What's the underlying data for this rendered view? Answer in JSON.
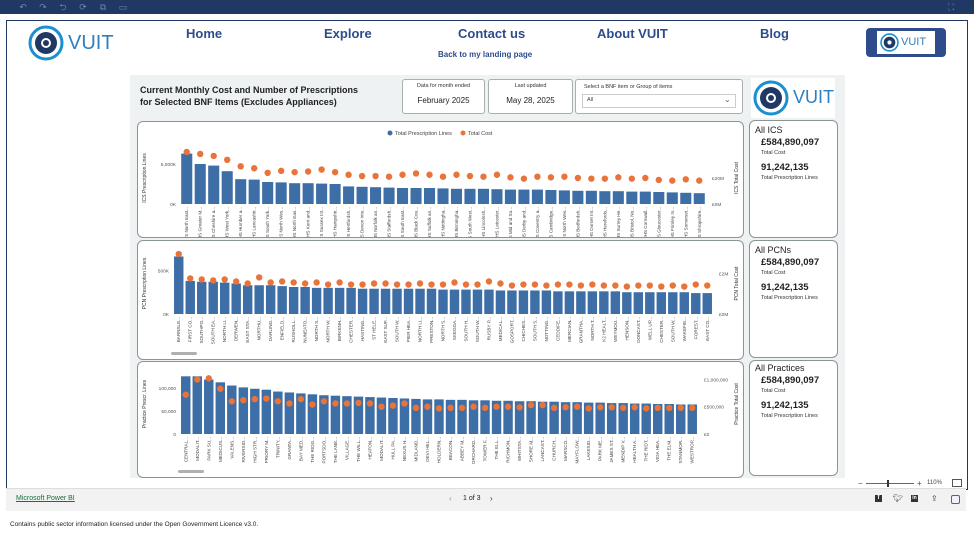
{
  "nav": {
    "home": "Home",
    "explore": "Explore",
    "contact": "Contact us",
    "about": "About VUIT",
    "blog": "Blog",
    "landing": "Back to my landing page"
  },
  "logo_text": "VUIT",
  "report": {
    "title_line1": "Current Monthly Cost and Number of Prescriptions",
    "title_line2": "for Selected BNF Items (Excludes Appliances)",
    "data_month_label": "Data for month ended",
    "data_month_value": "February 2025",
    "last_updated_label": "Last updated",
    "last_updated_value": "May 28, 2025",
    "bnf_label": "Select a BNF item or Group of items",
    "bnf_value": "All"
  },
  "legend": {
    "lines": "Total Prescription Lines",
    "cost": "Total Cost"
  },
  "colors": {
    "bar": "#3e6ea6",
    "dot": "#e8743b",
    "nav": "#2e4c8c"
  },
  "kpis": [
    {
      "title": "All ICS",
      "cost": "£584,890,097",
      "cost_label": "Total Cost",
      "lines": "91,242,135",
      "lines_label": "Total Prescription Lines"
    },
    {
      "title": "All PCNs",
      "cost": "£584,890,097",
      "cost_label": "Total Cost",
      "lines": "91,242,135",
      "lines_label": "Total Prescription Lines"
    },
    {
      "title": "All Practices",
      "cost": "£584,890,097",
      "cost_label": "Total Cost",
      "lines": "91,242,135",
      "lines_label": "Total Prescription Lines"
    }
  ],
  "chart_data": [
    {
      "type": "bar",
      "ylabel": "ICS Prescription Lines",
      "y2label": "ICS Total Cost",
      "ylim": [
        0,
        6500000
      ],
      "y2lim": [
        0,
        40000000
      ],
      "yticks": [
        {
          "v": 0,
          "t": "0K"
        },
        {
          "v": 5000000,
          "t": "5,000K"
        }
      ],
      "y2ticks": [
        {
          "v": 0,
          "t": "£0M"
        },
        {
          "v": 20000000,
          "t": "£20M"
        }
      ],
      "categories": [
        "NHS North East...",
        "NHS Greater M...",
        "NHS Cheshire a...",
        "NHS West York...",
        "NHS Humber a...",
        "NHS Lancashir...",
        "NHS South York...",
        "NHS North Wes...",
        "NHS North Eas...",
        "NHS Kent and...",
        "NHS Sussex Int...",
        "NHS Hampshir...",
        "NHS Hertfordsh...",
        "NHS Devon Inte...",
        "NHS Norfolk an...",
        "NHS Staffordsh...",
        "NHS South East...",
        "NHS Black Cou...",
        "NHS Suffolk an...",
        "NHS Nottingha...",
        "NHS Birmingha...",
        "NHS South West...",
        "NHS Lincolnsh...",
        "NHS Leicester...",
        "NHS Mid and So...",
        "NHS Derby and...",
        "NHS Coventry a...",
        "NHS Cambridge...",
        "NHS North Wes...",
        "NHS Bedfordsh...",
        "NHS Dorset Int...",
        "NHS Herefords...",
        "NHS Surrey He...",
        "NHS Bristol, No...",
        "NHS Cornwall...",
        "NHS Gloucester...",
        "NHS Frimley In...",
        "NHS Somerset...",
        "NHS Shropshire..."
      ],
      "series": [
        {
          "name": "Total Prescription Lines",
          "values": [
            6300000,
            5000000,
            4800000,
            4100000,
            3100000,
            3050000,
            2750000,
            2700000,
            2600000,
            2600000,
            2550000,
            2500000,
            2200000,
            2150000,
            2100000,
            2050000,
            2000000,
            2000000,
            2000000,
            1950000,
            1900000,
            1900000,
            1900000,
            1850000,
            1800000,
            1800000,
            1800000,
            1750000,
            1700000,
            1650000,
            1650000,
            1600000,
            1600000,
            1550000,
            1550000,
            1500000,
            1450000,
            1400000,
            1350000
          ]
        },
        {
          "name": "Total Cost",
          "values": [
            40000000,
            38500000,
            37000000,
            34000000,
            29000000,
            27500000,
            24000000,
            25500000,
            24500000,
            25000000,
            26500000,
            24500000,
            22500000,
            21500000,
            21500000,
            21000000,
            22500000,
            23500000,
            22500000,
            21000000,
            22500000,
            21500000,
            21000000,
            22500000,
            20500000,
            19500000,
            21000000,
            20500000,
            21000000,
            20000000,
            19500000,
            19500000,
            20500000,
            19500000,
            20000000,
            18500000,
            18000000,
            19000000,
            18000000
          ]
        }
      ]
    },
    {
      "type": "bar",
      "ylabel": "PCN Prescription Lines",
      "y2label": "PCN Total Cost",
      "ylim": [
        0,
        700000
      ],
      "y2lim": [
        0,
        3000000
      ],
      "yticks": [
        {
          "v": 0,
          "t": "0K"
        },
        {
          "v": 500000,
          "t": "500K"
        }
      ],
      "y2ticks": [
        {
          "v": 0,
          "t": "£0M"
        },
        {
          "v": 2000000,
          "t": "£2M"
        }
      ],
      "categories": [
        "BARNSLE...",
        "FIRST CO...",
        "SOUTHPO...",
        "SOUTH EA...",
        "NORTH LI...",
        "DERWEN...",
        "EAST STA...",
        "NORTHU...",
        "DARLING...",
        "ENFIELD...",
        "RUSHOLL...",
        "NUNEATO...",
        "NORTH S...",
        "NORTH W...",
        "BIRKENH...",
        "CHESTER...",
        "HASTING...",
        "ST HELE...",
        "EAST SUF...",
        "SOUTH W...",
        "PIER HEA...",
        "NORTH LI...",
        "PRESTON...",
        "NORTH S...",
        "SKEGGA...",
        "SOUTH H...",
        "SOUTH W...",
        "RUSBY P...",
        "MEDICAL...",
        "GOSPORT...",
        "CHICHES...",
        "SOUTH S...",
        "NOTTING...",
        "CEDDIFE...",
        "MERCIAN...",
        "GRANTHA...",
        "NORTH T...",
        "K2 HEALT...",
        "WEYMOU...",
        "HENSON...",
        "DONCAST...",
        "WELL UP...",
        "CHESTER...",
        "SOUTH W...",
        "WAKEFIE...",
        "FOREST...",
        "EAST CO..."
      ],
      "series": [
        {
          "name": "Total Prescription Lines",
          "values": [
            660000,
            380000,
            370000,
            370000,
            360000,
            350000,
            330000,
            330000,
            330000,
            320000,
            310000,
            310000,
            300000,
            300000,
            300000,
            300000,
            290000,
            290000,
            290000,
            290000,
            290000,
            290000,
            290000,
            280000,
            280000,
            280000,
            280000,
            280000,
            270000,
            270000,
            270000,
            270000,
            270000,
            260000,
            260000,
            260000,
            260000,
            260000,
            260000,
            250000,
            250000,
            250000,
            250000,
            250000,
            250000,
            240000,
            240000
          ]
        },
        {
          "name": "Total Cost",
          "values": [
            2950000,
            1750000,
            1700000,
            1650000,
            1700000,
            1600000,
            1500000,
            1800000,
            1550000,
            1600000,
            1550000,
            1500000,
            1550000,
            1450000,
            1550000,
            1450000,
            1450000,
            1500000,
            1500000,
            1450000,
            1450000,
            1500000,
            1450000,
            1450000,
            1550000,
            1450000,
            1450000,
            1600000,
            1500000,
            1400000,
            1450000,
            1450000,
            1400000,
            1450000,
            1450000,
            1400000,
            1450000,
            1400000,
            1400000,
            1350000,
            1400000,
            1400000,
            1350000,
            1400000,
            1350000,
            1450000,
            1400000
          ]
        }
      ]
    },
    {
      "type": "bar",
      "ylabel": "Practice Prescr. Lines",
      "y2label": "Practice Total Cost",
      "ylim": [
        0,
        130000
      ],
      "y2lim": [
        0,
        1100000
      ],
      "yticks": [
        {
          "v": 0,
          "t": "0"
        },
        {
          "v": 50000,
          "t": "50,000"
        },
        {
          "v": 100000,
          "t": "100,000"
        }
      ],
      "y2ticks": [
        {
          "v": 0,
          "t": "£0"
        },
        {
          "v": 500000,
          "t": "£500,000"
        },
        {
          "v": 1000000,
          "t": "£1,000,000"
        }
      ],
      "categories": [
        "CENTRAL...",
        "MODALIT...",
        "PARK SU...",
        "MEDICUS...",
        "VALENS...",
        "RIVERSID...",
        "HIGH STR...",
        "PRIORY M...",
        "TRINITY...",
        "GRANTA...",
        "BAY MED...",
        "THE RIDG...",
        "PORTSDO...",
        "THE LANE...",
        "VILLAGE...",
        "THE WILL...",
        "HEATON...",
        "MODALIT...",
        "HULL PA...",
        "NEXUS H...",
        "MIDLAND...",
        "DEVI HEL...",
        "HOLDERN...",
        "BEACON...",
        "ABBEY M...",
        "ORCHARD...",
        "TOWER F...",
        "THE ELL...",
        "RICHMON...",
        "WHITSTA...",
        "SHORE M...",
        "LANCAST...",
        "CHURCH...",
        "MARSCO...",
        "MAYFLOW...",
        "LAKESID...",
        "PARK ME...",
        "JAMES ST...",
        "MENDIP V...",
        "HEALTH A...",
        "THE RIDT...",
        "VIDA HEA...",
        "THE ELM...",
        "STANMOR...",
        "WESTROP..."
      ],
      "series": [
        {
          "name": "Total Prescription Lines",
          "values": [
            125000,
            125000,
            118000,
            112000,
            105000,
            101000,
            98000,
            96000,
            92000,
            90000,
            88000,
            86000,
            84000,
            83000,
            82000,
            81000,
            80000,
            79000,
            78000,
            77000,
            76000,
            75000,
            75000,
            74000,
            74000,
            73000,
            73000,
            72000,
            72000,
            71000,
            71000,
            70000,
            70000,
            69000,
            69000,
            68000,
            68000,
            67000,
            67000,
            66000,
            66000,
            65000,
            65000,
            64000,
            64000
          ]
        },
        {
          "name": "Total Cost",
          "values": [
            720000,
            1000000,
            1020000,
            830000,
            600000,
            620000,
            640000,
            650000,
            600000,
            560000,
            640000,
            540000,
            600000,
            560000,
            560000,
            570000,
            560000,
            500000,
            520000,
            560000,
            480000,
            500000,
            470000,
            480000,
            480000,
            500000,
            480000,
            500000,
            500000,
            490000,
            530000,
            530000,
            480000,
            490000,
            500000,
            470000,
            490000,
            490000,
            480000,
            490000,
            470000,
            480000,
            480000,
            480000,
            480000
          ]
        }
      ]
    }
  ],
  "footer": {
    "powerbi": "Microsoft Power BI",
    "pages": "1 of 3",
    "zoom": "110%",
    "license": "Contains public sector information licensed under the Open Government Licence v3.0."
  }
}
